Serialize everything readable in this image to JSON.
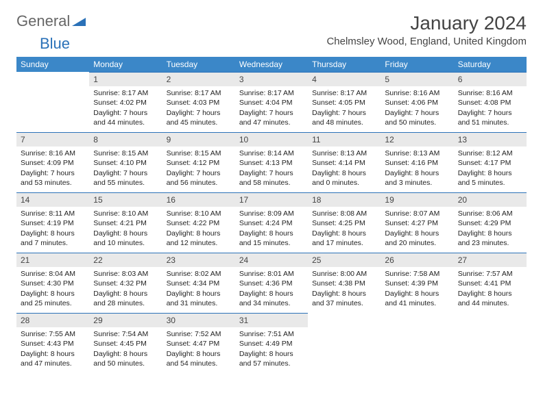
{
  "brand": {
    "part1": "General",
    "part2": "Blue"
  },
  "title": "January 2024",
  "location": "Chelmsley Wood, England, United Kingdom",
  "colors": {
    "header_bg": "#3b87c8",
    "accent": "#2a71b8",
    "daynum_bg": "#e9e9e9",
    "text": "#333333",
    "background": "#ffffff"
  },
  "fonts": {
    "base_family": "Arial",
    "title_size_pt": 21,
    "location_size_pt": 11,
    "dayhdr_size_pt": 9,
    "cell_size_pt": 8
  },
  "day_headers": [
    "Sunday",
    "Monday",
    "Tuesday",
    "Wednesday",
    "Thursday",
    "Friday",
    "Saturday"
  ],
  "weeks": [
    [
      {
        "n": "",
        "sr": "",
        "ss": "",
        "dl": ""
      },
      {
        "n": "1",
        "sr": "Sunrise: 8:17 AM",
        "ss": "Sunset: 4:02 PM",
        "dl": "Daylight: 7 hours and 44 minutes."
      },
      {
        "n": "2",
        "sr": "Sunrise: 8:17 AM",
        "ss": "Sunset: 4:03 PM",
        "dl": "Daylight: 7 hours and 45 minutes."
      },
      {
        "n": "3",
        "sr": "Sunrise: 8:17 AM",
        "ss": "Sunset: 4:04 PM",
        "dl": "Daylight: 7 hours and 47 minutes."
      },
      {
        "n": "4",
        "sr": "Sunrise: 8:17 AM",
        "ss": "Sunset: 4:05 PM",
        "dl": "Daylight: 7 hours and 48 minutes."
      },
      {
        "n": "5",
        "sr": "Sunrise: 8:16 AM",
        "ss": "Sunset: 4:06 PM",
        "dl": "Daylight: 7 hours and 50 minutes."
      },
      {
        "n": "6",
        "sr": "Sunrise: 8:16 AM",
        "ss": "Sunset: 4:08 PM",
        "dl": "Daylight: 7 hours and 51 minutes."
      }
    ],
    [
      {
        "n": "7",
        "sr": "Sunrise: 8:16 AM",
        "ss": "Sunset: 4:09 PM",
        "dl": "Daylight: 7 hours and 53 minutes."
      },
      {
        "n": "8",
        "sr": "Sunrise: 8:15 AM",
        "ss": "Sunset: 4:10 PM",
        "dl": "Daylight: 7 hours and 55 minutes."
      },
      {
        "n": "9",
        "sr": "Sunrise: 8:15 AM",
        "ss": "Sunset: 4:12 PM",
        "dl": "Daylight: 7 hours and 56 minutes."
      },
      {
        "n": "10",
        "sr": "Sunrise: 8:14 AM",
        "ss": "Sunset: 4:13 PM",
        "dl": "Daylight: 7 hours and 58 minutes."
      },
      {
        "n": "11",
        "sr": "Sunrise: 8:13 AM",
        "ss": "Sunset: 4:14 PM",
        "dl": "Daylight: 8 hours and 0 minutes."
      },
      {
        "n": "12",
        "sr": "Sunrise: 8:13 AM",
        "ss": "Sunset: 4:16 PM",
        "dl": "Daylight: 8 hours and 3 minutes."
      },
      {
        "n": "13",
        "sr": "Sunrise: 8:12 AM",
        "ss": "Sunset: 4:17 PM",
        "dl": "Daylight: 8 hours and 5 minutes."
      }
    ],
    [
      {
        "n": "14",
        "sr": "Sunrise: 8:11 AM",
        "ss": "Sunset: 4:19 PM",
        "dl": "Daylight: 8 hours and 7 minutes."
      },
      {
        "n": "15",
        "sr": "Sunrise: 8:10 AM",
        "ss": "Sunset: 4:21 PM",
        "dl": "Daylight: 8 hours and 10 minutes."
      },
      {
        "n": "16",
        "sr": "Sunrise: 8:10 AM",
        "ss": "Sunset: 4:22 PM",
        "dl": "Daylight: 8 hours and 12 minutes."
      },
      {
        "n": "17",
        "sr": "Sunrise: 8:09 AM",
        "ss": "Sunset: 4:24 PM",
        "dl": "Daylight: 8 hours and 15 minutes."
      },
      {
        "n": "18",
        "sr": "Sunrise: 8:08 AM",
        "ss": "Sunset: 4:25 PM",
        "dl": "Daylight: 8 hours and 17 minutes."
      },
      {
        "n": "19",
        "sr": "Sunrise: 8:07 AM",
        "ss": "Sunset: 4:27 PM",
        "dl": "Daylight: 8 hours and 20 minutes."
      },
      {
        "n": "20",
        "sr": "Sunrise: 8:06 AM",
        "ss": "Sunset: 4:29 PM",
        "dl": "Daylight: 8 hours and 23 minutes."
      }
    ],
    [
      {
        "n": "21",
        "sr": "Sunrise: 8:04 AM",
        "ss": "Sunset: 4:30 PM",
        "dl": "Daylight: 8 hours and 25 minutes."
      },
      {
        "n": "22",
        "sr": "Sunrise: 8:03 AM",
        "ss": "Sunset: 4:32 PM",
        "dl": "Daylight: 8 hours and 28 minutes."
      },
      {
        "n": "23",
        "sr": "Sunrise: 8:02 AM",
        "ss": "Sunset: 4:34 PM",
        "dl": "Daylight: 8 hours and 31 minutes."
      },
      {
        "n": "24",
        "sr": "Sunrise: 8:01 AM",
        "ss": "Sunset: 4:36 PM",
        "dl": "Daylight: 8 hours and 34 minutes."
      },
      {
        "n": "25",
        "sr": "Sunrise: 8:00 AM",
        "ss": "Sunset: 4:38 PM",
        "dl": "Daylight: 8 hours and 37 minutes."
      },
      {
        "n": "26",
        "sr": "Sunrise: 7:58 AM",
        "ss": "Sunset: 4:39 PM",
        "dl": "Daylight: 8 hours and 41 minutes."
      },
      {
        "n": "27",
        "sr": "Sunrise: 7:57 AM",
        "ss": "Sunset: 4:41 PM",
        "dl": "Daylight: 8 hours and 44 minutes."
      }
    ],
    [
      {
        "n": "28",
        "sr": "Sunrise: 7:55 AM",
        "ss": "Sunset: 4:43 PM",
        "dl": "Daylight: 8 hours and 47 minutes."
      },
      {
        "n": "29",
        "sr": "Sunrise: 7:54 AM",
        "ss": "Sunset: 4:45 PM",
        "dl": "Daylight: 8 hours and 50 minutes."
      },
      {
        "n": "30",
        "sr": "Sunrise: 7:52 AM",
        "ss": "Sunset: 4:47 PM",
        "dl": "Daylight: 8 hours and 54 minutes."
      },
      {
        "n": "31",
        "sr": "Sunrise: 7:51 AM",
        "ss": "Sunset: 4:49 PM",
        "dl": "Daylight: 8 hours and 57 minutes."
      },
      {
        "n": "",
        "sr": "",
        "ss": "",
        "dl": ""
      },
      {
        "n": "",
        "sr": "",
        "ss": "",
        "dl": ""
      },
      {
        "n": "",
        "sr": "",
        "ss": "",
        "dl": ""
      }
    ]
  ]
}
